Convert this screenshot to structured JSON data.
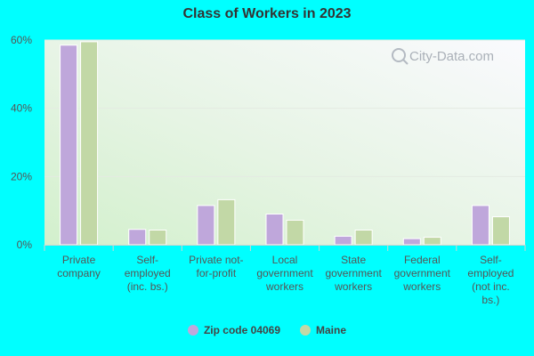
{
  "chart_data": {
    "type": "bar",
    "title": "Class of Workers in 2023",
    "categories": [
      [
        "Private",
        "company"
      ],
      [
        "Self-",
        "employed",
        "(inc. bs.)"
      ],
      [
        "Private not-",
        "for-profit"
      ],
      [
        "Local",
        "government",
        "workers"
      ],
      [
        "State",
        "government",
        "workers"
      ],
      [
        "Federal",
        "government",
        "workers"
      ],
      [
        "Self-",
        "employed",
        "(not inc.",
        "bs.)"
      ]
    ],
    "series": [
      {
        "name": "Zip code 04069",
        "color": "#bfa7db",
        "values": [
          58.5,
          4.5,
          11.5,
          9.0,
          2.5,
          1.8,
          11.5
        ]
      },
      {
        "name": "Maine",
        "color": "#c2d8a6",
        "values": [
          59.5,
          4.3,
          13.2,
          7.2,
          4.3,
          2.2,
          8.2
        ]
      }
    ],
    "ylim": [
      0,
      60
    ],
    "yticks": [
      0,
      20,
      40,
      60
    ],
    "ytick_labels": [
      "0%",
      "20%",
      "40%",
      "60%"
    ],
    "grid": true,
    "legend_position": "bottom"
  },
  "watermark": "City-Data.com",
  "colors": {
    "page_background": "#00ffff",
    "plot_background_top": "#f8f8fc",
    "plot_background_bottom": "#d6f2d0"
  }
}
